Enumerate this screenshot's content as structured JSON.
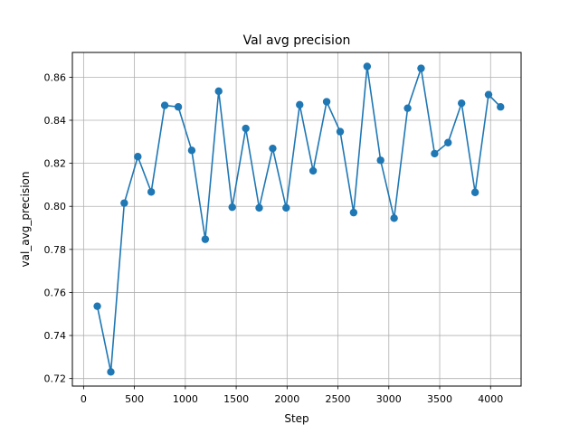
{
  "chart_data": {
    "type": "line",
    "title": "Val avg precision",
    "xlabel": "Step",
    "ylabel": "val_avg_precision",
    "xlim": [
      -110,
      4300
    ],
    "ylim": [
      0.7165,
      0.8715
    ],
    "xticks": [
      0,
      500,
      1000,
      1500,
      2000,
      2500,
      3000,
      3500,
      4000
    ],
    "yticks": [
      0.72,
      0.74,
      0.76,
      0.78,
      0.8,
      0.82,
      0.84,
      0.86
    ],
    "xtick_labels": [
      "0",
      "500",
      "1000",
      "1500",
      "2000",
      "2500",
      "3000",
      "3500",
      "4000"
    ],
    "ytick_labels": [
      "0.72",
      "0.74",
      "0.76",
      "0.78",
      "0.80",
      "0.82",
      "0.84",
      "0.86"
    ],
    "grid": true,
    "series": [
      {
        "color": "#1f77b4",
        "marker": "circle",
        "x": [
          135,
          268,
          400,
          533,
          665,
          798,
          931,
          1063,
          1196,
          1328,
          1461,
          1594,
          1726,
          1859,
          1991,
          2124,
          2256,
          2389,
          2522,
          2654,
          2787,
          2919,
          3052,
          3185,
          3317,
          3450,
          3582,
          3715,
          3848,
          3980,
          4098
        ],
        "y": [
          0.7536,
          0.7231,
          0.8015,
          0.8231,
          0.8067,
          0.8469,
          0.8462,
          0.826,
          0.7847,
          0.8535,
          0.7996,
          0.8362,
          0.7993,
          0.8269,
          0.7993,
          0.8472,
          0.8165,
          0.8486,
          0.8347,
          0.7971,
          0.865,
          0.8214,
          0.7945,
          0.8456,
          0.8641,
          0.8245,
          0.8296,
          0.8479,
          0.8065,
          0.8519,
          0.8462
        ]
      }
    ]
  }
}
